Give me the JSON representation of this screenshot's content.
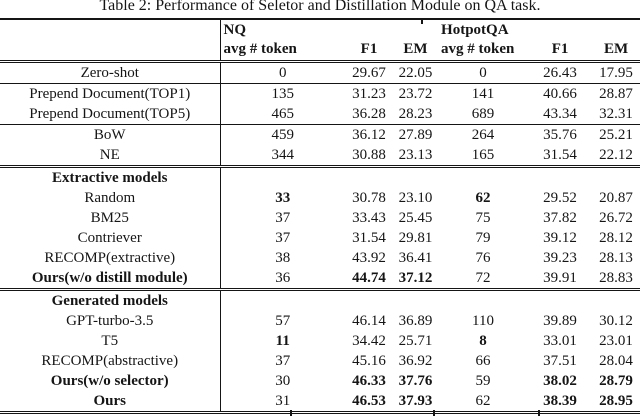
{
  "title": "Table 2: Performance of Seletor and Distillation Module on QA task.",
  "table": {
    "col_groups": [
      {
        "label": "NQ"
      },
      {
        "label": "HotpotQA"
      }
    ],
    "sub_headers": [
      "avg # token",
      "F1",
      "EM",
      "avg # token",
      "F1",
      "EM"
    ],
    "rows": [
      {
        "label": "Zero-shot",
        "values": [
          "0",
          "29.67",
          "22.05",
          "0",
          "26.43",
          "17.95"
        ]
      },
      {
        "label": "Prepend Document(TOP1)",
        "rule_top": "thin",
        "values": [
          "135",
          "31.23",
          "23.72",
          "141",
          "40.66",
          "28.87"
        ]
      },
      {
        "label": "Prepend Document(TOP5)",
        "values": [
          "465",
          "36.28",
          "28.23",
          "689",
          "43.34",
          "32.31"
        ]
      },
      {
        "label": "BoW",
        "rule_top": "thin",
        "values": [
          "459",
          "36.12",
          "27.89",
          "264",
          "35.76",
          "25.21"
        ]
      },
      {
        "label": "NE",
        "values": [
          "344",
          "30.88",
          "23.13",
          "165",
          "31.54",
          "22.12"
        ]
      },
      {
        "label": "Extractive models",
        "section": true,
        "label_bold": true,
        "rule_top": "double",
        "values": [
          "",
          "",
          "",
          "",
          "",
          ""
        ]
      },
      {
        "label": "Random",
        "values": [
          "33",
          "30.78",
          "23.10",
          "62",
          "29.52",
          "20.87"
        ],
        "bold_values": [
          0,
          3
        ]
      },
      {
        "label": "BM25",
        "values": [
          "37",
          "33.43",
          "25.45",
          "75",
          "37.82",
          "26.72"
        ]
      },
      {
        "label": "Contriever",
        "values": [
          "37",
          "31.54",
          "29.81",
          "79",
          "39.12",
          "28.12"
        ]
      },
      {
        "label": "RECOMP(extractive)",
        "values": [
          "38",
          "43.92",
          "36.41",
          "76",
          "39.23",
          "28.13"
        ]
      },
      {
        "label": "Ours(w/o distill module)",
        "label_bold": true,
        "values": [
          "36",
          "44.74",
          "37.12",
          "72",
          "39.91",
          "28.83"
        ],
        "bold_values": [
          1,
          2
        ]
      },
      {
        "label": "Generated models",
        "section": true,
        "label_bold": true,
        "rule_top": "double",
        "values": [
          "",
          "",
          "",
          "",
          "",
          ""
        ]
      },
      {
        "label": "GPT-turbo-3.5",
        "values": [
          "57",
          "46.14",
          "36.89",
          "110",
          "39.89",
          "30.12"
        ]
      },
      {
        "label": "T5",
        "values": [
          "11",
          "34.42",
          "25.71",
          "8",
          "33.01",
          "23.01"
        ],
        "bold_values": [
          0,
          3
        ]
      },
      {
        "label": "RECOMP(abstractive)",
        "values": [
          "37",
          "45.16",
          "36.92",
          "66",
          "37.51",
          "28.04"
        ]
      },
      {
        "label": "Ours(w/o selector)",
        "label_bold": true,
        "values": [
          "30",
          "46.33",
          "37.76",
          "59",
          "38.02",
          "28.79"
        ],
        "bold_values": [
          1,
          2,
          4,
          5
        ]
      },
      {
        "label": "Ours",
        "label_bold": true,
        "values": [
          "31",
          "46.53",
          "37.93",
          "62",
          "38.39",
          "28.95"
        ],
        "bold_values": [
          1,
          2,
          4,
          5
        ]
      }
    ]
  }
}
